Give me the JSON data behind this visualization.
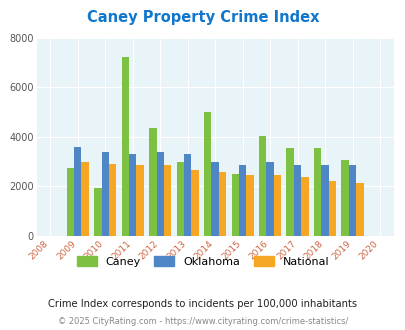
{
  "title": "Caney Property Crime Index",
  "years": [
    2008,
    2009,
    2010,
    2011,
    2012,
    2013,
    2014,
    2015,
    2016,
    2017,
    2018,
    2019,
    2020
  ],
  "caney": [
    null,
    2750,
    1950,
    7250,
    4350,
    3000,
    5000,
    2500,
    4050,
    3550,
    3550,
    3050,
    null
  ],
  "oklahoma": [
    null,
    3580,
    3400,
    3330,
    3400,
    3300,
    3000,
    2880,
    2980,
    2880,
    2880,
    2850,
    null
  ],
  "national": [
    null,
    3000,
    2900,
    2880,
    2880,
    2680,
    2580,
    2480,
    2480,
    2380,
    2220,
    2120,
    null
  ],
  "caney_color": "#7dc142",
  "oklahoma_color": "#4f86c6",
  "national_color": "#f5a623",
  "bg_color": "#e8f4f8",
  "ylim": [
    0,
    8000
  ],
  "yticks": [
    0,
    2000,
    4000,
    6000,
    8000
  ],
  "xtick_color": "#cc6644",
  "title_color": "#1177cc",
  "subtitle": "Crime Index corresponds to incidents per 100,000 inhabitants",
  "footer": "© 2025 CityRating.com - https://www.cityrating.com/crime-statistics/",
  "bar_width": 0.27,
  "grid_color": "#ffffff",
  "legend_labels": [
    "Caney",
    "Oklahoma",
    "National"
  ]
}
